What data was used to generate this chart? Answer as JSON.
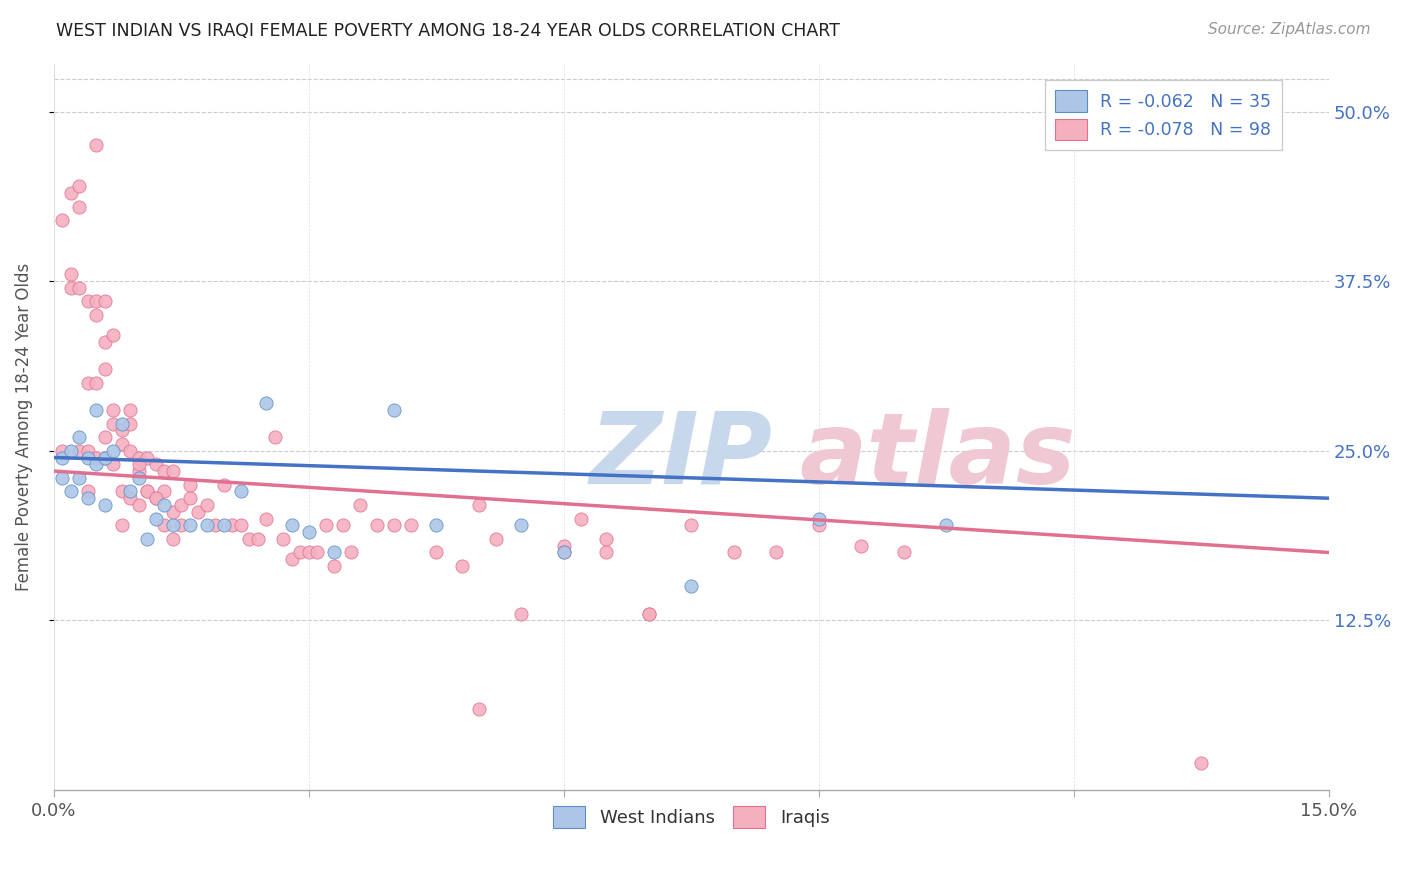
{
  "title": "WEST INDIAN VS IRAQI FEMALE POVERTY AMONG 18-24 YEAR OLDS CORRELATION CHART",
  "source": "Source: ZipAtlas.com",
  "ylabel": "Female Poverty Among 18-24 Year Olds",
  "yticks_labels": [
    "50.0%",
    "37.5%",
    "25.0%",
    "12.5%"
  ],
  "ytick_vals": [
    0.5,
    0.375,
    0.25,
    0.125
  ],
  "xmin": 0.0,
  "xmax": 0.15,
  "ymin": 0.0,
  "ymax": 0.535,
  "legend_line1": "R = -0.062   N = 35",
  "legend_line2": "R = -0.078   N = 98",
  "west_color_fill": "#adc6e8",
  "west_color_edge": "#5b8ec4",
  "iraqi_color_fill": "#f5b0c0",
  "iraqi_color_edge": "#e07090",
  "west_line_color": "#4472c4",
  "iraqi_line_color": "#e07090",
  "watermark_zip_color": "#c8d8ec",
  "watermark_atlas_color": "#f0c8d4",
  "west_indian_x": [
    0.001,
    0.001,
    0.002,
    0.002,
    0.003,
    0.003,
    0.004,
    0.004,
    0.005,
    0.005,
    0.006,
    0.006,
    0.007,
    0.008,
    0.009,
    0.01,
    0.011,
    0.012,
    0.013,
    0.014,
    0.016,
    0.018,
    0.02,
    0.022,
    0.025,
    0.028,
    0.03,
    0.033,
    0.04,
    0.045,
    0.055,
    0.06,
    0.075,
    0.09,
    0.105
  ],
  "west_indian_y": [
    0.245,
    0.23,
    0.25,
    0.22,
    0.26,
    0.23,
    0.245,
    0.215,
    0.28,
    0.24,
    0.245,
    0.21,
    0.25,
    0.27,
    0.22,
    0.23,
    0.185,
    0.2,
    0.21,
    0.195,
    0.195,
    0.195,
    0.195,
    0.22,
    0.285,
    0.195,
    0.19,
    0.175,
    0.28,
    0.195,
    0.195,
    0.175,
    0.15,
    0.2,
    0.195
  ],
  "iraqi_x": [
    0.001,
    0.001,
    0.002,
    0.002,
    0.002,
    0.003,
    0.003,
    0.003,
    0.003,
    0.004,
    0.004,
    0.004,
    0.004,
    0.005,
    0.005,
    0.005,
    0.005,
    0.006,
    0.006,
    0.006,
    0.006,
    0.007,
    0.007,
    0.007,
    0.008,
    0.008,
    0.008,
    0.009,
    0.009,
    0.009,
    0.01,
    0.01,
    0.01,
    0.011,
    0.011,
    0.012,
    0.012,
    0.013,
    0.013,
    0.014,
    0.014,
    0.015,
    0.015,
    0.016,
    0.016,
    0.017,
    0.018,
    0.019,
    0.02,
    0.021,
    0.022,
    0.023,
    0.024,
    0.025,
    0.026,
    0.027,
    0.028,
    0.029,
    0.03,
    0.031,
    0.032,
    0.033,
    0.034,
    0.035,
    0.036,
    0.038,
    0.04,
    0.042,
    0.045,
    0.048,
    0.05,
    0.052,
    0.055,
    0.06,
    0.062,
    0.065,
    0.07,
    0.075,
    0.08,
    0.085,
    0.09,
    0.095,
    0.1,
    0.05,
    0.005,
    0.006,
    0.007,
    0.008,
    0.009,
    0.01,
    0.011,
    0.012,
    0.013,
    0.014,
    0.06,
    0.065,
    0.07,
    0.135
  ],
  "iraqi_y": [
    0.42,
    0.25,
    0.38,
    0.37,
    0.44,
    0.445,
    0.43,
    0.37,
    0.25,
    0.36,
    0.3,
    0.25,
    0.22,
    0.36,
    0.35,
    0.3,
    0.245,
    0.36,
    0.33,
    0.31,
    0.245,
    0.28,
    0.27,
    0.24,
    0.265,
    0.255,
    0.22,
    0.27,
    0.25,
    0.215,
    0.245,
    0.235,
    0.21,
    0.245,
    0.22,
    0.24,
    0.215,
    0.235,
    0.22,
    0.235,
    0.205,
    0.21,
    0.195,
    0.225,
    0.215,
    0.205,
    0.21,
    0.195,
    0.225,
    0.195,
    0.195,
    0.185,
    0.185,
    0.2,
    0.26,
    0.185,
    0.17,
    0.175,
    0.175,
    0.175,
    0.195,
    0.165,
    0.195,
    0.175,
    0.21,
    0.195,
    0.195,
    0.195,
    0.175,
    0.165,
    0.06,
    0.185,
    0.13,
    0.18,
    0.2,
    0.185,
    0.13,
    0.195,
    0.175,
    0.175,
    0.195,
    0.18,
    0.175,
    0.21,
    0.475,
    0.26,
    0.335,
    0.195,
    0.28,
    0.24,
    0.22,
    0.215,
    0.195,
    0.185,
    0.175,
    0.175,
    0.13,
    0.02
  ]
}
